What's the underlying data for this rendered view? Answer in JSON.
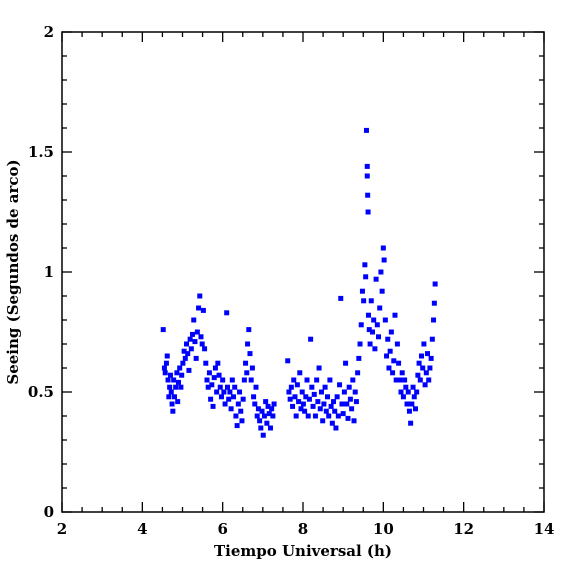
{
  "chart_data": {
    "type": "scatter",
    "x_label": "Tiempo Universal (h)",
    "y_label": "Seeing (Segundos de arco)",
    "color": "#0000ff",
    "xlim": [
      2,
      14
    ],
    "xticks": [
      2,
      4,
      6,
      8,
      10,
      12,
      14
    ],
    "ylim": [
      0,
      2
    ],
    "yticks": [
      0,
      0.5,
      1,
      1.5,
      2
    ],
    "x": [
      4.52,
      4.55,
      4.57,
      4.6,
      4.62,
      4.64,
      4.66,
      4.68,
      4.7,
      4.72,
      4.74,
      4.76,
      4.78,
      4.8,
      4.83,
      4.86,
      4.88,
      4.9,
      4.93,
      4.96,
      4.98,
      5.01,
      5.04,
      5.07,
      5.1,
      5.13,
      5.16,
      5.19,
      5.22,
      5.25,
      5.28,
      5.31,
      5.34,
      5.37,
      5.4,
      5.43,
      5.46,
      5.49,
      5.52,
      5.55,
      5.58,
      5.61,
      5.64,
      5.67,
      5.7,
      5.73,
      5.76,
      5.79,
      5.82,
      5.85,
      5.88,
      5.91,
      5.94,
      5.97,
      6.0,
      6.03,
      6.06,
      6.1,
      6.12,
      6.15,
      6.18,
      6.21,
      6.24,
      6.27,
      6.3,
      6.33,
      6.36,
      6.39,
      6.42,
      6.45,
      6.48,
      6.51,
      6.54,
      6.57,
      6.6,
      6.62,
      6.65,
      6.68,
      6.71,
      6.74,
      6.77,
      6.8,
      6.83,
      6.86,
      6.89,
      6.92,
      6.95,
      6.98,
      7.01,
      7.04,
      7.07,
      7.1,
      7.13,
      7.16,
      7.19,
      7.22,
      7.25,
      7.28,
      7.62,
      7.65,
      7.68,
      7.71,
      7.74,
      7.77,
      7.8,
      7.83,
      7.86,
      7.89,
      7.92,
      7.95,
      7.98,
      8.01,
      8.04,
      8.07,
      8.1,
      8.13,
      8.16,
      8.19,
      8.22,
      8.25,
      8.28,
      8.31,
      8.34,
      8.37,
      8.4,
      8.43,
      8.46,
      8.49,
      8.52,
      8.55,
      8.58,
      8.61,
      8.64,
      8.67,
      8.7,
      8.73,
      8.76,
      8.79,
      8.82,
      8.85,
      8.88,
      8.91,
      8.94,
      8.97,
      9.0,
      9.03,
      9.06,
      9.09,
      9.12,
      9.15,
      9.18,
      9.21,
      9.24,
      9.27,
      9.3,
      9.33,
      9.36,
      9.39,
      9.42,
      9.45,
      9.48,
      9.51,
      9.54,
      9.56,
      9.58,
      9.6,
      9.6,
      9.61,
      9.62,
      9.63,
      9.65,
      9.67,
      9.7,
      9.73,
      9.76,
      9.79,
      9.82,
      9.85,
      9.88,
      9.91,
      9.94,
      9.97,
      10.0,
      10.02,
      10.05,
      10.08,
      10.11,
      10.14,
      10.17,
      10.2,
      10.23,
      10.26,
      10.29,
      10.32,
      10.35,
      10.38,
      10.41,
      10.44,
      10.47,
      10.5,
      10.53,
      10.56,
      10.59,
      10.62,
      10.65,
      10.68,
      10.71,
      10.74,
      10.77,
      10.8,
      10.83,
      10.86,
      10.89,
      10.92,
      10.95,
      10.98,
      11.01,
      11.04,
      11.07,
      11.1,
      11.13,
      11.16,
      11.19,
      11.22,
      11.25,
      11.27,
      11.29
    ],
    "values": [
      0.76,
      0.6,
      0.58,
      0.62,
      0.65,
      0.55,
      0.48,
      0.52,
      0.57,
      0.5,
      0.45,
      0.42,
      0.55,
      0.48,
      0.52,
      0.58,
      0.46,
      0.54,
      0.6,
      0.52,
      0.57,
      0.62,
      0.67,
      0.64,
      0.7,
      0.66,
      0.59,
      0.72,
      0.68,
      0.74,
      0.8,
      0.71,
      0.64,
      0.75,
      0.85,
      0.9,
      0.73,
      0.7,
      0.84,
      0.68,
      0.62,
      0.55,
      0.52,
      0.58,
      0.47,
      0.53,
      0.44,
      0.56,
      0.6,
      0.5,
      0.62,
      0.57,
      0.52,
      0.48,
      0.55,
      0.5,
      0.45,
      0.83,
      0.52,
      0.47,
      0.5,
      0.43,
      0.55,
      0.48,
      0.52,
      0.4,
      0.36,
      0.45,
      0.5,
      0.42,
      0.38,
      0.47,
      0.55,
      0.62,
      0.58,
      0.7,
      0.76,
      0.66,
      0.55,
      0.6,
      0.48,
      0.45,
      0.52,
      0.4,
      0.43,
      0.38,
      0.35,
      0.42,
      0.32,
      0.4,
      0.46,
      0.37,
      0.44,
      0.41,
      0.35,
      0.43,
      0.4,
      0.45,
      0.63,
      0.5,
      0.47,
      0.52,
      0.44,
      0.55,
      0.48,
      0.4,
      0.53,
      0.46,
      0.58,
      0.43,
      0.5,
      0.45,
      0.42,
      0.48,
      0.55,
      0.4,
      0.47,
      0.72,
      0.52,
      0.44,
      0.49,
      0.4,
      0.55,
      0.46,
      0.6,
      0.43,
      0.5,
      0.38,
      0.45,
      0.52,
      0.42,
      0.48,
      0.4,
      0.55,
      0.44,
      0.37,
      0.46,
      0.42,
      0.35,
      0.48,
      0.4,
      0.53,
      0.89,
      0.45,
      0.41,
      0.5,
      0.62,
      0.45,
      0.39,
      0.52,
      0.47,
      0.43,
      0.55,
      0.38,
      0.5,
      0.46,
      0.58,
      0.64,
      0.7,
      0.78,
      0.92,
      0.88,
      1.03,
      0.98,
      1.59,
      1.44,
      1.4,
      1.32,
      1.25,
      0.82,
      0.76,
      0.7,
      0.88,
      0.75,
      0.8,
      0.68,
      0.97,
      0.78,
      0.73,
      0.85,
      1.0,
      0.92,
      1.1,
      1.05,
      0.8,
      0.65,
      0.72,
      0.6,
      0.67,
      0.75,
      0.58,
      0.63,
      0.82,
      0.55,
      0.7,
      0.62,
      0.55,
      0.5,
      0.58,
      0.48,
      0.55,
      0.52,
      0.45,
      0.5,
      0.42,
      0.37,
      0.45,
      0.52,
      0.48,
      0.43,
      0.5,
      0.57,
      0.62,
      0.55,
      0.65,
      0.6,
      0.7,
      0.53,
      0.58,
      0.66,
      0.55,
      0.6,
      0.64,
      0.72,
      0.8,
      0.87,
      0.95
    ]
  }
}
